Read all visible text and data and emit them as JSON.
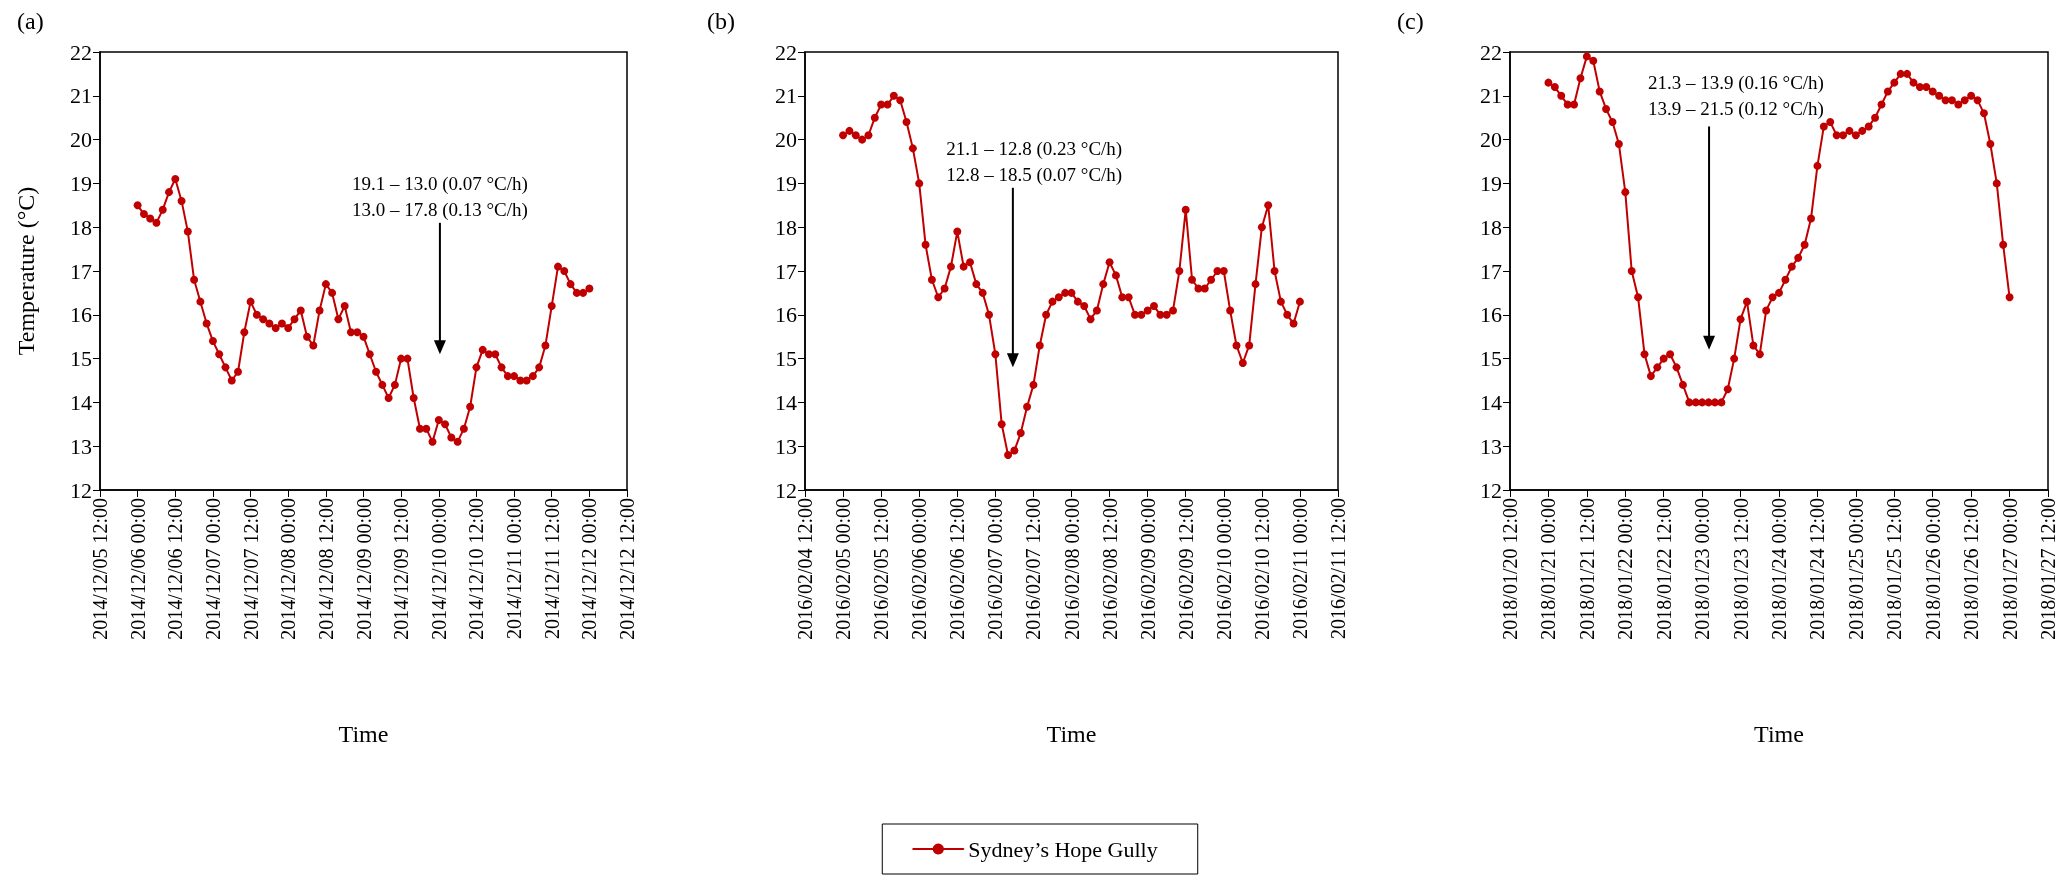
{
  "chart_data": [
    {
      "type": "line",
      "title": "(a)",
      "xlabel": "Time",
      "ylabel": "Temperature (°C)",
      "marker": "circle",
      "line_style": "solid",
      "grid": false,
      "legend": false,
      "x": [
        "2014-12-06T00:00",
        "2014-12-06T02:00",
        "2014-12-06T04:00",
        "2014-12-06T06:00",
        "2014-12-06T08:00",
        "2014-12-06T10:00",
        "2014-12-06T12:00",
        "2014-12-06T14:00",
        "2014-12-06T16:00",
        "2014-12-06T18:00",
        "2014-12-06T20:00",
        "2014-12-06T22:00",
        "2014-12-07T00:00",
        "2014-12-07T02:00",
        "2014-12-07T04:00",
        "2014-12-07T06:00",
        "2014-12-07T08:00",
        "2014-12-07T10:00",
        "2014-12-07T12:00",
        "2014-12-07T14:00",
        "2014-12-07T16:00",
        "2014-12-07T18:00",
        "2014-12-07T20:00",
        "2014-12-07T22:00",
        "2014-12-08T00:00",
        "2014-12-08T02:00",
        "2014-12-08T04:00",
        "2014-12-08T06:00",
        "2014-12-08T08:00",
        "2014-12-08T10:00",
        "2014-12-08T12:00",
        "2014-12-08T14:00",
        "2014-12-08T16:00",
        "2014-12-08T18:00",
        "2014-12-08T20:00",
        "2014-12-08T22:00",
        "2014-12-09T00:00",
        "2014-12-09T02:00",
        "2014-12-09T04:00",
        "2014-12-09T06:00",
        "2014-12-09T08:00",
        "2014-12-09T10:00",
        "2014-12-09T12:00",
        "2014-12-09T14:00",
        "2014-12-09T16:00",
        "2014-12-09T18:00",
        "2014-12-09T20:00",
        "2014-12-09T22:00",
        "2014-12-10T00:00",
        "2014-12-10T02:00",
        "2014-12-10T04:00",
        "2014-12-10T06:00",
        "2014-12-10T08:00",
        "2014-12-10T10:00",
        "2014-12-10T12:00",
        "2014-12-10T14:00",
        "2014-12-10T16:00",
        "2014-12-10T18:00",
        "2014-12-10T20:00",
        "2014-12-10T22:00",
        "2014-12-11T00:00",
        "2014-12-11T02:00",
        "2014-12-11T04:00",
        "2014-12-11T06:00",
        "2014-12-11T08:00",
        "2014-12-11T10:00",
        "2014-12-11T12:00",
        "2014-12-11T14:00",
        "2014-12-11T16:00",
        "2014-12-11T18:00",
        "2014-12-11T20:00",
        "2014-12-11T22:00",
        "2014-12-12T00:00"
      ],
      "series": [
        {
          "color": "#c00000",
          "values": [
            18.5,
            18.3,
            18.2,
            18.1,
            18.4,
            18.8,
            19.1,
            18.6,
            17.9,
            16.8,
            16.3,
            15.8,
            15.4,
            15.1,
            14.8,
            14.5,
            14.7,
            15.6,
            16.3,
            16.0,
            15.9,
            15.8,
            15.7,
            15.8,
            15.7,
            15.9,
            16.1,
            15.5,
            15.3,
            16.1,
            16.7,
            16.5,
            15.9,
            16.2,
            15.6,
            15.6,
            15.5,
            15.1,
            14.7,
            14.4,
            14.1,
            14.4,
            15.0,
            15.0,
            14.1,
            13.4,
            13.4,
            13.1,
            13.6,
            13.5,
            13.2,
            13.1,
            13.4,
            13.9,
            14.8,
            15.2,
            15.1,
            15.1,
            14.8,
            14.6,
            14.6,
            14.5,
            14.5,
            14.6,
            14.8,
            15.3,
            16.2,
            17.1,
            17.0,
            16.7,
            16.5,
            16.5,
            16.6
          ]
        }
      ],
      "xlim": [
        "2014-12-05T12:00",
        "2014-12-12T12:00"
      ],
      "xticks": [
        {
          "value": "2014-12-05T12:00",
          "label": "2014/12/05 12:00"
        },
        {
          "value": "2014-12-06T00:00",
          "label": "2014/12/06 00:00"
        },
        {
          "value": "2014-12-06T12:00",
          "label": "2014/12/06 12:00"
        },
        {
          "value": "2014-12-07T00:00",
          "label": "2014/12/07 00:00"
        },
        {
          "value": "2014-12-07T12:00",
          "label": "2014/12/07 12:00"
        },
        {
          "value": "2014-12-08T00:00",
          "label": "2014/12/08 00:00"
        },
        {
          "value": "2014-12-08T12:00",
          "label": "2014/12/08 12:00"
        },
        {
          "value": "2014-12-09T00:00",
          "label": "2014/12/09 00:00"
        },
        {
          "value": "2014-12-09T12:00",
          "label": "2014/12/09 12:00"
        },
        {
          "value": "2014-12-10T00:00",
          "label": "2014/12/10 00:00"
        },
        {
          "value": "2014-12-10T12:00",
          "label": "2014/12/10 12:00"
        },
        {
          "value": "2014-12-11T00:00",
          "label": "2014/12/11 00:00"
        },
        {
          "value": "2014-12-11T12:00",
          "label": "2014/12/11 12:00"
        },
        {
          "value": "2014-12-12T00:00",
          "label": "2014/12/12 00:00"
        },
        {
          "value": "2014-12-12T12:00",
          "label": "2014/12/12 12:00"
        }
      ],
      "ylim": [
        12,
        22
      ],
      "yticks": [
        12,
        13,
        14,
        15,
        16,
        17,
        18,
        19,
        20,
        21,
        22
      ],
      "annotations": [
        "19.1 – 13.0 (0.07 °C/h)\n13.0 – 17.8 (0.13 °C/h)"
      ]
    },
    {
      "type": "line",
      "title": "(b)",
      "xlabel": "Time",
      "marker": "circle",
      "line_style": "solid",
      "grid": false,
      "legend": "bottom",
      "x": [
        "2016-02-05T00:00",
        "2016-02-05T02:00",
        "2016-02-05T04:00",
        "2016-02-05T06:00",
        "2016-02-05T08:00",
        "2016-02-05T10:00",
        "2016-02-05T12:00",
        "2016-02-05T14:00",
        "2016-02-05T16:00",
        "2016-02-05T18:00",
        "2016-02-05T20:00",
        "2016-02-05T22:00",
        "2016-02-06T00:00",
        "2016-02-06T02:00",
        "2016-02-06T04:00",
        "2016-02-06T06:00",
        "2016-02-06T08:00",
        "2016-02-06T10:00",
        "2016-02-06T12:00",
        "2016-02-06T14:00",
        "2016-02-06T16:00",
        "2016-02-06T18:00",
        "2016-02-06T20:00",
        "2016-02-06T22:00",
        "2016-02-07T00:00",
        "2016-02-07T02:00",
        "2016-02-07T04:00",
        "2016-02-07T06:00",
        "2016-02-07T08:00",
        "2016-02-07T10:00",
        "2016-02-07T12:00",
        "2016-02-07T14:00",
        "2016-02-07T16:00",
        "2016-02-07T18:00",
        "2016-02-07T20:00",
        "2016-02-07T22:00",
        "2016-02-08T00:00",
        "2016-02-08T02:00",
        "2016-02-08T04:00",
        "2016-02-08T06:00",
        "2016-02-08T08:00",
        "2016-02-08T10:00",
        "2016-02-08T12:00",
        "2016-02-08T14:00",
        "2016-02-08T16:00",
        "2016-02-08T18:00",
        "2016-02-08T20:00",
        "2016-02-08T22:00",
        "2016-02-09T00:00",
        "2016-02-09T02:00",
        "2016-02-09T04:00",
        "2016-02-09T06:00",
        "2016-02-09T08:00",
        "2016-02-09T10:00",
        "2016-02-09T12:00",
        "2016-02-09T14:00",
        "2016-02-09T16:00",
        "2016-02-09T18:00",
        "2016-02-09T20:00",
        "2016-02-09T22:00",
        "2016-02-10T00:00",
        "2016-02-10T02:00",
        "2016-02-10T04:00",
        "2016-02-10T06:00",
        "2016-02-10T08:00",
        "2016-02-10T10:00",
        "2016-02-10T12:00",
        "2016-02-10T14:00",
        "2016-02-10T16:00",
        "2016-02-10T18:00",
        "2016-02-10T20:00",
        "2016-02-10T22:00",
        "2016-02-11T00:00"
      ],
      "series": [
        {
          "name": "Sydney’s Hope Gully",
          "color": "#c00000",
          "values": [
            20.1,
            20.2,
            20.1,
            20.0,
            20.1,
            20.5,
            20.8,
            20.8,
            21.0,
            20.9,
            20.4,
            19.8,
            19.0,
            17.6,
            16.8,
            16.4,
            16.6,
            17.1,
            17.9,
            17.1,
            17.2,
            16.7,
            16.5,
            16.0,
            15.1,
            13.5,
            12.8,
            12.9,
            13.3,
            13.9,
            14.4,
            15.3,
            16.0,
            16.3,
            16.4,
            16.5,
            16.5,
            16.3,
            16.2,
            15.9,
            16.1,
            16.7,
            17.2,
            16.9,
            16.4,
            16.4,
            16.0,
            16.0,
            16.1,
            16.2,
            16.0,
            16.0,
            16.1,
            17.0,
            18.4,
            16.8,
            16.6,
            16.6,
            16.8,
            17.0,
            17.0,
            16.1,
            15.3,
            14.9,
            15.3,
            16.7,
            18.0,
            18.5,
            17.0,
            16.3,
            16.0,
            15.8,
            16.3
          ]
        }
      ],
      "xlim": [
        "2016-02-04T12:00",
        "2016-02-11T12:00"
      ],
      "xticks": [
        {
          "value": "2016-02-04T12:00",
          "label": "2016/02/04 12:00"
        },
        {
          "value": "2016-02-05T00:00",
          "label": "2016/02/05 00:00"
        },
        {
          "value": "2016-02-05T12:00",
          "label": "2016/02/05 12:00"
        },
        {
          "value": "2016-02-06T00:00",
          "label": "2016/02/06 00:00"
        },
        {
          "value": "2016-02-06T12:00",
          "label": "2016/02/06 12:00"
        },
        {
          "value": "2016-02-07T00:00",
          "label": "2016/02/07 00:00"
        },
        {
          "value": "2016-02-07T12:00",
          "label": "2016/02/07 12:00"
        },
        {
          "value": "2016-02-08T00:00",
          "label": "2016/02/08 00:00"
        },
        {
          "value": "2016-02-08T12:00",
          "label": "2016/02/08 12:00"
        },
        {
          "value": "2016-02-09T00:00",
          "label": "2016/02/09 00:00"
        },
        {
          "value": "2016-02-09T12:00",
          "label": "2016/02/09 12:00"
        },
        {
          "value": "2016-02-10T00:00",
          "label": "2016/02/10 00:00"
        },
        {
          "value": "2016-02-10T12:00",
          "label": "2016/02/10 12:00"
        },
        {
          "value": "2016-02-11T00:00",
          "label": "2016/02/11 00:00"
        },
        {
          "value": "2016-02-11T12:00",
          "label": "2016/02/11 12:00"
        }
      ],
      "ylim": [
        12,
        22
      ],
      "yticks": [
        12,
        13,
        14,
        15,
        16,
        17,
        18,
        19,
        20,
        21,
        22
      ],
      "annotations": [
        "21.1 – 12.8 (0.23 °C/h)\n12.8 – 18.5 (0.07 °C/h)"
      ]
    },
    {
      "type": "line",
      "title": "(c)",
      "xlabel": "Time",
      "marker": "circle",
      "line_style": "solid",
      "grid": false,
      "legend": false,
      "x": [
        "2018-01-21T00:00",
        "2018-01-21T02:00",
        "2018-01-21T04:00",
        "2018-01-21T06:00",
        "2018-01-21T08:00",
        "2018-01-21T10:00",
        "2018-01-21T12:00",
        "2018-01-21T14:00",
        "2018-01-21T16:00",
        "2018-01-21T18:00",
        "2018-01-21T20:00",
        "2018-01-21T22:00",
        "2018-01-22T00:00",
        "2018-01-22T02:00",
        "2018-01-22T04:00",
        "2018-01-22T06:00",
        "2018-01-22T08:00",
        "2018-01-22T10:00",
        "2018-01-22T12:00",
        "2018-01-22T14:00",
        "2018-01-22T16:00",
        "2018-01-22T18:00",
        "2018-01-22T20:00",
        "2018-01-22T22:00",
        "2018-01-23T00:00",
        "2018-01-23T02:00",
        "2018-01-23T04:00",
        "2018-01-23T06:00",
        "2018-01-23T08:00",
        "2018-01-23T10:00",
        "2018-01-23T12:00",
        "2018-01-23T14:00",
        "2018-01-23T16:00",
        "2018-01-23T18:00",
        "2018-01-23T20:00",
        "2018-01-23T22:00",
        "2018-01-24T00:00",
        "2018-01-24T02:00",
        "2018-01-24T04:00",
        "2018-01-24T06:00",
        "2018-01-24T08:00",
        "2018-01-24T10:00",
        "2018-01-24T12:00",
        "2018-01-24T14:00",
        "2018-01-24T16:00",
        "2018-01-24T18:00",
        "2018-01-24T20:00",
        "2018-01-24T22:00",
        "2018-01-25T00:00",
        "2018-01-25T02:00",
        "2018-01-25T04:00",
        "2018-01-25T06:00",
        "2018-01-25T08:00",
        "2018-01-25T10:00",
        "2018-01-25T12:00",
        "2018-01-25T14:00",
        "2018-01-25T16:00",
        "2018-01-25T18:00",
        "2018-01-25T20:00",
        "2018-01-25T22:00",
        "2018-01-26T00:00",
        "2018-01-26T02:00",
        "2018-01-26T04:00",
        "2018-01-26T06:00",
        "2018-01-26T08:00",
        "2018-01-26T10:00",
        "2018-01-26T12:00",
        "2018-01-26T14:00",
        "2018-01-26T16:00",
        "2018-01-26T18:00",
        "2018-01-26T20:00",
        "2018-01-26T22:00",
        "2018-01-27T00:00"
      ],
      "series": [
        {
          "color": "#c00000",
          "values": [
            21.3,
            21.2,
            21.0,
            20.8,
            20.8,
            21.4,
            21.9,
            21.8,
            21.1,
            20.7,
            20.4,
            19.9,
            18.8,
            17.0,
            16.4,
            15.1,
            14.6,
            14.8,
            15.0,
            15.1,
            14.8,
            14.4,
            14.0,
            14.0,
            14.0,
            14.0,
            14.0,
            14.0,
            14.3,
            15.0,
            15.9,
            16.3,
            15.3,
            15.1,
            16.1,
            16.4,
            16.5,
            16.8,
            17.1,
            17.3,
            17.6,
            18.2,
            19.4,
            20.3,
            20.4,
            20.1,
            20.1,
            20.2,
            20.1,
            20.2,
            20.3,
            20.5,
            20.8,
            21.1,
            21.3,
            21.5,
            21.5,
            21.3,
            21.2,
            21.2,
            21.1,
            21.0,
            20.9,
            20.9,
            20.8,
            20.9,
            21.0,
            20.9,
            20.6,
            19.9,
            19.0,
            17.6,
            16.4
          ]
        }
      ],
      "xlim": [
        "2018-01-20T12:00",
        "2018-01-27T12:00"
      ],
      "xticks": [
        {
          "value": "2018-01-20T12:00",
          "label": "2018/01/20 12:00"
        },
        {
          "value": "2018-01-21T00:00",
          "label": "2018/01/21 00:00"
        },
        {
          "value": "2018-01-21T12:00",
          "label": "2018/01/21 12:00"
        },
        {
          "value": "2018-01-22T00:00",
          "label": "2018/01/22 00:00"
        },
        {
          "value": "2018-01-22T12:00",
          "label": "2018/01/22 12:00"
        },
        {
          "value": "2018-01-23T00:00",
          "label": "2018/01/23 00:00"
        },
        {
          "value": "2018-01-23T12:00",
          "label": "2018/01/23 12:00"
        },
        {
          "value": "2018-01-24T00:00",
          "label": "2018/01/24 00:00"
        },
        {
          "value": "2018-01-24T12:00",
          "label": "2018/01/24 12:00"
        },
        {
          "value": "2018-01-25T00:00",
          "label": "2018/01/25 00:00"
        },
        {
          "value": "2018-01-25T12:00",
          "label": "2018/01/25 12:00"
        },
        {
          "value": "2018-01-26T00:00",
          "label": "2018/01/26 00:00"
        },
        {
          "value": "2018-01-26T12:00",
          "label": "2018/01/26 12:00"
        },
        {
          "value": "2018-01-27T00:00",
          "label": "2018/01/27 00:00"
        },
        {
          "value": "2018-01-27T12:00",
          "label": "2018/01/27 12:00"
        }
      ],
      "ylim": [
        12,
        22
      ],
      "yticks": [
        12,
        13,
        14,
        15,
        16,
        17,
        18,
        19,
        20,
        21,
        22
      ],
      "annotations": [
        "21.3 – 13.9 (0.16 °C/h)\n13.9 – 21.5 (0.12 °C/h)"
      ]
    }
  ]
}
